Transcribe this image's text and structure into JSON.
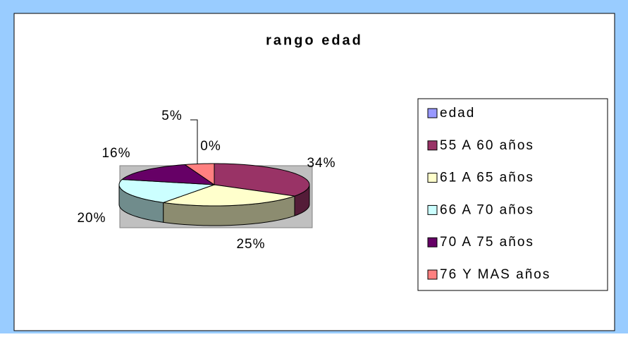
{
  "chart_data": {
    "type": "pie3d",
    "title": "rango edad",
    "categories": [
      "edad",
      "55 A 60 años",
      "61 A 65 años",
      "66 A 70 años",
      "70 A 75 años",
      "76 Y MAS años"
    ],
    "values": [
      0,
      34,
      25,
      20,
      16,
      5
    ],
    "value_labels": [
      "0%",
      "34%",
      "25%",
      "20%",
      "16%",
      "5%"
    ],
    "colors": [
      "#9999FF",
      "#993366",
      "#FFFFCC",
      "#CCFFFF",
      "#660066",
      "#FF8080"
    ],
    "legend": "right"
  }
}
